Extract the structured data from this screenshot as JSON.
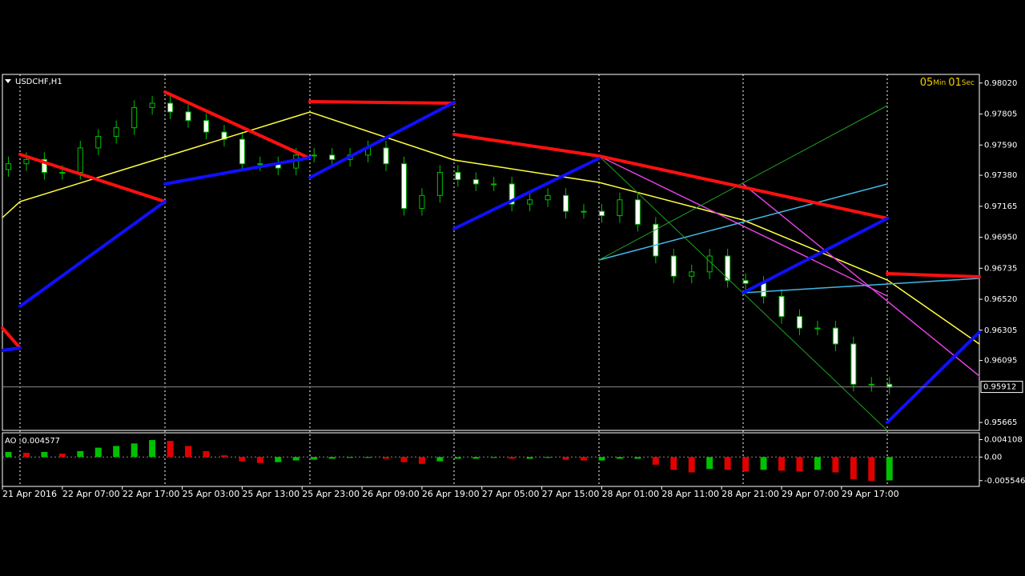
{
  "chart_data": [
    {
      "type": "candlestick",
      "title": "USDCHF,H1",
      "timer": [
        "05",
        "Min",
        "01",
        "Sec"
      ],
      "x": [
        1,
        4,
        7,
        10,
        13,
        16,
        19,
        22,
        25,
        28,
        31,
        34,
        37,
        40,
        43,
        46,
        49,
        52,
        55,
        58,
        61,
        64,
        67,
        70,
        73,
        76,
        79,
        82,
        85,
        88,
        91,
        94,
        97,
        100,
        103,
        106,
        109,
        112,
        115,
        118,
        121,
        124,
        127,
        130,
        133,
        136,
        139,
        142,
        145,
        148
      ],
      "open": [
        0.9742,
        0.9746,
        0.9749,
        0.974,
        0.974,
        0.9757,
        0.9765,
        0.9771,
        0.9785,
        0.9788,
        0.9782,
        0.9776,
        0.9768,
        0.9763,
        0.9746,
        0.9746,
        0.9743,
        0.9752,
        0.9752,
        0.9749,
        0.9752,
        0.9757,
        0.9746,
        0.9715,
        0.9724,
        0.974,
        0.9735,
        0.9732,
        0.9732,
        0.9718,
        0.9721,
        0.9724,
        0.9713,
        0.9713,
        0.971,
        0.9721,
        0.9704,
        0.9682,
        0.9668,
        0.9671,
        0.9682,
        0.9665,
        0.9663,
        0.9654,
        0.964,
        0.9632,
        0.9632,
        0.9621,
        0.9593,
        0.9593
      ],
      "high": [
        0.9751,
        0.9754,
        0.9754,
        0.9745,
        0.9762,
        0.977,
        0.9776,
        0.979,
        0.9793,
        0.9793,
        0.9787,
        0.9781,
        0.9773,
        0.9768,
        0.9751,
        0.9751,
        0.9757,
        0.9757,
        0.9757,
        0.9757,
        0.9762,
        0.9762,
        0.9751,
        0.9729,
        0.9745,
        0.9745,
        0.974,
        0.9737,
        0.9737,
        0.9726,
        0.9729,
        0.9729,
        0.9718,
        0.9718,
        0.9726,
        0.9726,
        0.9709,
        0.9687,
        0.9676,
        0.9687,
        0.9687,
        0.967,
        0.9668,
        0.9659,
        0.9645,
        0.9637,
        0.9637,
        0.9626,
        0.9598,
        0.9598
      ],
      "low": [
        0.9737,
        0.9741,
        0.9735,
        0.9735,
        0.9735,
        0.9752,
        0.976,
        0.9766,
        0.978,
        0.9777,
        0.9771,
        0.9763,
        0.9758,
        0.9741,
        0.9741,
        0.9738,
        0.9738,
        0.9747,
        0.9744,
        0.9744,
        0.9747,
        0.9741,
        0.971,
        0.971,
        0.9719,
        0.973,
        0.9727,
        0.9727,
        0.9713,
        0.9713,
        0.9716,
        0.9708,
        0.9708,
        0.9705,
        0.9705,
        0.9699,
        0.9677,
        0.9663,
        0.9663,
        0.9666,
        0.966,
        0.9658,
        0.9649,
        0.9635,
        0.9627,
        0.9627,
        0.9616,
        0.9588,
        0.9588,
        0.9586
      ],
      "close": [
        0.9746,
        0.9749,
        0.974,
        0.974,
        0.9757,
        0.9765,
        0.9771,
        0.9785,
        0.9788,
        0.9782,
        0.9776,
        0.9768,
        0.9763,
        0.9746,
        0.9746,
        0.9743,
        0.9752,
        0.9752,
        0.9749,
        0.9752,
        0.9757,
        0.9746,
        0.9715,
        0.9724,
        0.974,
        0.9735,
        0.9732,
        0.9732,
        0.9718,
        0.9721,
        0.9724,
        0.9713,
        0.9713,
        0.971,
        0.9721,
        0.9704,
        0.9682,
        0.9668,
        0.9671,
        0.9682,
        0.9665,
        0.9663,
        0.9654,
        0.964,
        0.9632,
        0.9632,
        0.9621,
        0.9593,
        0.9593,
        0.9591
      ],
      "up_color": "#000000",
      "down_color": "#ffffff",
      "wick_color": "#00c000",
      "last_price": 0.95912,
      "xlim": [
        0,
        163
      ],
      "ylim": [
        0.9561,
        0.9808
      ],
      "xticks": [
        {
          "value": 0,
          "label": "21 Apr 2016"
        },
        {
          "value": 10,
          "label": "22 Apr 07:00"
        },
        {
          "value": 20,
          "label": "22 Apr 17:00"
        },
        {
          "value": 30,
          "label": "25 Apr 03:00"
        },
        {
          "value": 40,
          "label": "25 Apr 13:00"
        },
        {
          "value": 50,
          "label": "25 Apr 23:00"
        },
        {
          "value": 60,
          "label": "26 Apr 09:00"
        },
        {
          "value": 70,
          "label": "26 Apr 19:00"
        },
        {
          "value": 80,
          "label": "27 Apr 05:00"
        },
        {
          "value": 90,
          "label": "27 Apr 15:00"
        },
        {
          "value": 100,
          "label": "28 Apr 01:00"
        },
        {
          "value": 110,
          "label": "28 Apr 11:00"
        },
        {
          "value": 120,
          "label": "28 Apr 21:00"
        },
        {
          "value": 130,
          "label": "29 Apr 07:00"
        },
        {
          "value": 140,
          "label": "29 Apr 17:00"
        }
      ],
      "yticks": [
        {
          "value": 0.9802,
          "label": "0.98020"
        },
        0.97805,
        {
          "value": 0.9759,
          "label": "0.97590"
        },
        {
          "value": 0.9738,
          "label": "0.97380"
        },
        0.97165,
        {
          "value": 0.9695,
          "label": "0.96950"
        },
        0.96735,
        {
          "value": 0.9652,
          "label": "0.96520"
        },
        0.96305,
        0.96095,
        0.95665
      ]
    },
    {
      "type": "bar",
      "title": "AO -0.004577",
      "x": [
        1,
        4,
        7,
        10,
        13,
        16,
        19,
        22,
        25,
        28,
        31,
        34,
        37,
        40,
        43,
        46,
        49,
        52,
        55,
        58,
        61,
        64,
        67,
        70,
        73,
        76,
        79,
        82,
        85,
        88,
        91,
        94,
        97,
        100,
        103,
        106,
        109,
        112,
        115,
        118,
        121,
        124,
        127,
        130,
        133,
        136,
        139,
        142,
        145,
        148
      ],
      "values": [
        0.0012,
        0.001,
        0.0012,
        0.0008,
        0.0014,
        0.0022,
        0.0026,
        0.0032,
        0.004,
        0.0038,
        0.0026,
        0.0014,
        0.0004,
        -0.001,
        -0.0014,
        -0.0012,
        -0.0008,
        -0.0006,
        -0.0004,
        -0.0002,
        -0.0002,
        -0.0004,
        -0.0012,
        -0.0016,
        -0.001,
        -0.0004,
        -0.0004,
        -0.0002,
        -0.0004,
        -0.0004,
        -0.0002,
        -0.0006,
        -0.0008,
        -0.0008,
        -0.0004,
        -0.0004,
        -0.0018,
        -0.003,
        -0.0036,
        -0.0028,
        -0.003,
        -0.0034,
        -0.003,
        -0.0032,
        -0.0034,
        -0.003,
        -0.0036,
        -0.0052,
        -0.0056,
        -0.0055
      ],
      "up_color": "#00c000",
      "down_color": "#e00000",
      "xlim": [
        0,
        163
      ],
      "ylim": [
        -0.0069,
        0.0057
      ],
      "yticks": [
        0.004108,
        {
          "value": 0,
          "label": "0.00"
        },
        -0.005546
      ]
    }
  ]
}
